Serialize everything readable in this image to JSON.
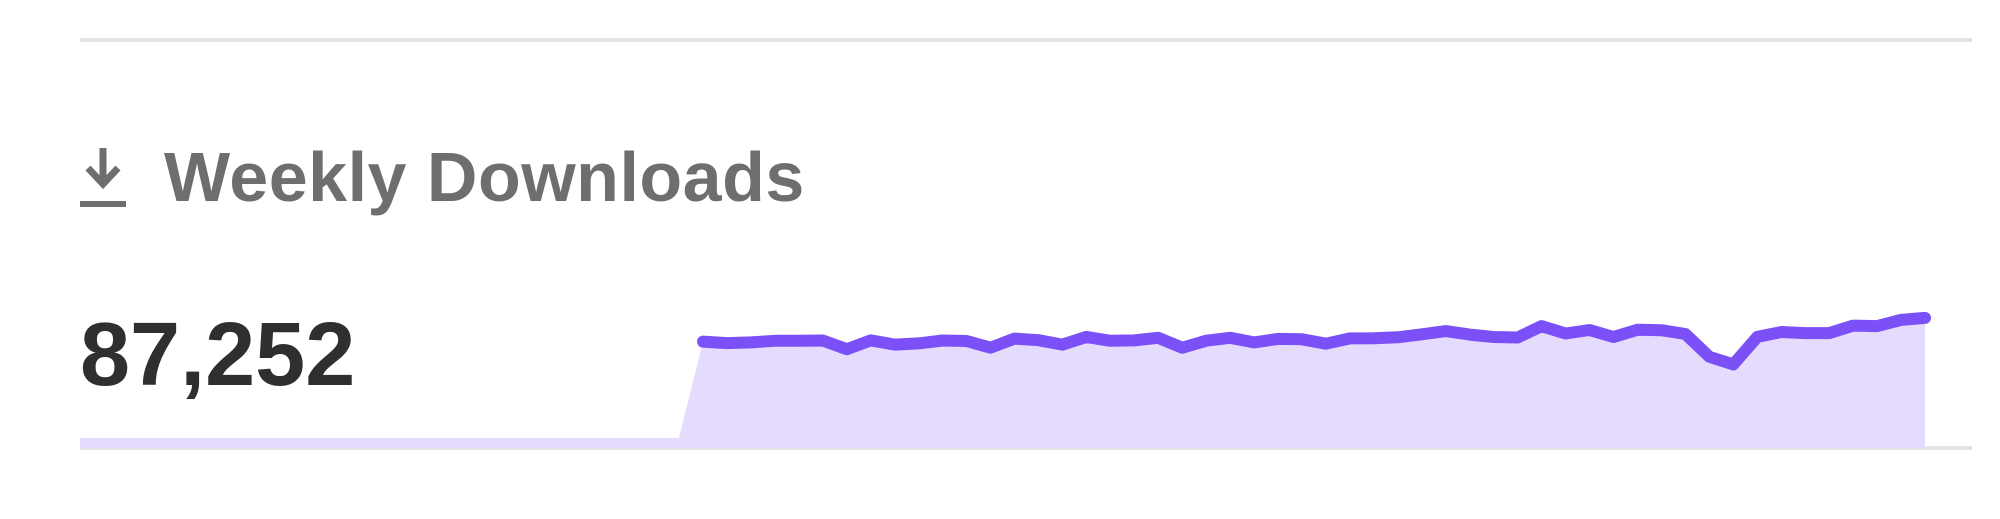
{
  "stat": {
    "icon": "download-icon",
    "title": "Weekly Downloads",
    "value": "87,252"
  },
  "colors": {
    "line": "#7c50f7",
    "fill": "#e5dbfd",
    "baseline": "#e4e4e4",
    "title": "#6e6e6e",
    "value": "#2f2f2f"
  },
  "chart_data": {
    "type": "area",
    "title": "",
    "xlabel": "",
    "ylabel": "",
    "grid": false,
    "legend": "none",
    "leading_zero_weeks": 26,
    "ylim": [
      0,
      100000
    ],
    "values": [
      70000,
      69000,
      69500,
      70500,
      70600,
      70700,
      65000,
      70800,
      68000,
      68800,
      70700,
      70400,
      66000,
      72000,
      70900,
      68000,
      73100,
      70500,
      70800,
      72500,
      66000,
      70600,
      72500,
      69500,
      71800,
      71500,
      68600,
      72100,
      72200,
      72800,
      74800,
      76900,
      74600,
      73000,
      72700,
      80200,
      75300,
      77600,
      73000,
      77800,
      77500,
      75000,
      60000,
      55000,
      73100,
      76300,
      75600,
      75600,
      80500,
      80200,
      84300,
      85600
    ]
  }
}
